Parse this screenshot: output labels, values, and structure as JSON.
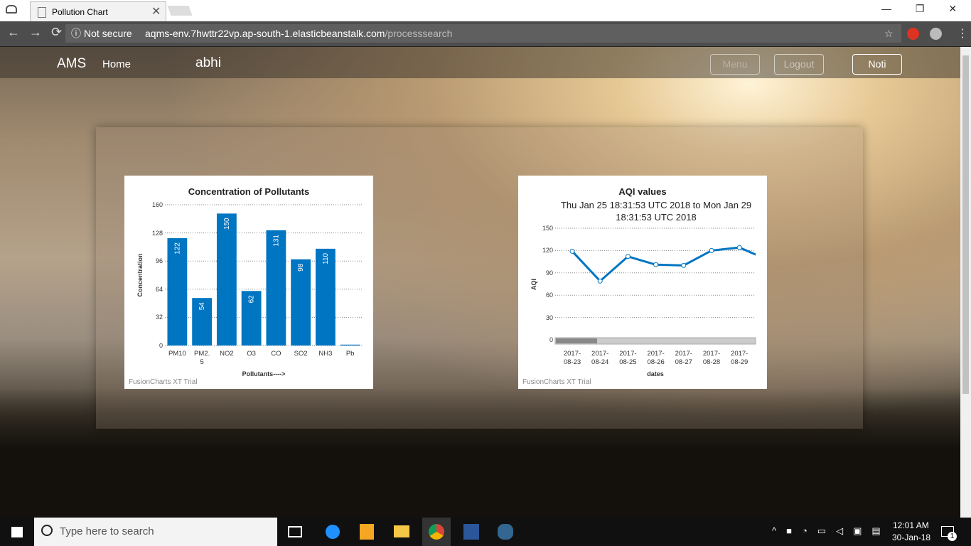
{
  "browser": {
    "tab_title": "Pollution Chart",
    "security": "Not secure",
    "url_host": "aqms-env.7hwttr22vp.ap-south-1.elasticbeanstalk.com",
    "url_path": "/processsearch"
  },
  "nav": {
    "brand": "AMS",
    "home": "Home",
    "user": "abhi",
    "menu": "Menu",
    "logout": "Logout",
    "noti": "Noti"
  },
  "chart_data": [
    {
      "type": "bar",
      "title": "Concentration of Pollutants",
      "x_label": "Pollutants---->",
      "y_label": "Concentration",
      "credit": "FusionCharts XT Trial",
      "categories": [
        "PM10",
        "PM2.5",
        "NO2",
        "O3",
        "CO",
        "SO2",
        "NH3",
        "Pb"
      ],
      "values": [
        122,
        54,
        150,
        62,
        131,
        98,
        110,
        1
      ],
      "color": "#0075c2",
      "ylim": [
        0,
        160
      ],
      "yticks": [
        0,
        32,
        64,
        96,
        128,
        160
      ],
      "grid": true
    },
    {
      "type": "line",
      "title": "AQI values",
      "subtitle": "Thu Jan 25 18:31:53 UTC 2018 to Mon Jan 29 18:31:53 UTC 2018",
      "x_label": "dates",
      "y_label": "AQI",
      "credit": "FusionCharts XT Trial",
      "categories": [
        "2017-08-23",
        "2017-08-24",
        "2017-08-25",
        "2017-08-26",
        "2017-08-27",
        "2017-08-28",
        "2017-08-29",
        null
      ],
      "values": [
        119,
        79,
        112,
        101,
        100,
        120,
        124,
        108
      ],
      "color": "#0075c2",
      "ylim": [
        0,
        150
      ],
      "yticks": [
        0,
        30,
        60,
        90,
        120,
        150
      ],
      "grid": true
    }
  ],
  "taskbar": {
    "search": "Type here to search",
    "time": "12:01 AM",
    "date": "30-Jan-18",
    "notifications": 1
  }
}
